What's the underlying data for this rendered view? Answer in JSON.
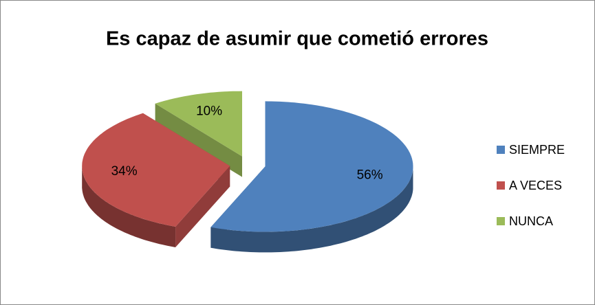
{
  "chart_data": {
    "type": "pie",
    "title": "Es capaz de asumir que cometió errores",
    "categories": [
      "SIEMPRE",
      "A VECES",
      "NUNCA"
    ],
    "values": [
      56,
      34,
      10
    ],
    "value_labels": [
      "56%",
      "34%",
      "10%"
    ],
    "colors": [
      "#4f81bd",
      "#c0504d",
      "#9bbb59"
    ],
    "legend": "right"
  }
}
